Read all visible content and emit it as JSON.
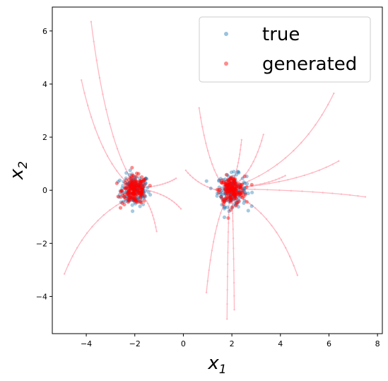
{
  "chart_data": {
    "type": "scatter",
    "title": "",
    "xlabel": "x",
    "xlabel_sub": "1",
    "ylabel": "x",
    "ylabel_sub": "2",
    "xlim": [
      -5.4,
      8.2
    ],
    "ylim": [
      -5.4,
      6.9
    ],
    "x_ticks": [
      -4,
      -2,
      0,
      2,
      4,
      6,
      8
    ],
    "y_ticks": [
      -4,
      -2,
      0,
      2,
      4,
      6
    ],
    "x_tick_labels": [
      "−4",
      "−2",
      "0",
      "2",
      "4",
      "6",
      "8"
    ],
    "y_tick_labels": [
      "−4",
      "−2",
      "0",
      "2",
      "4",
      "6"
    ],
    "grid": false,
    "legend_position": "top-right",
    "series": [
      {
        "name": "true",
        "color": "#1f77b4",
        "clusters": [
          {
            "center": [
              -2.0,
              0.0
            ],
            "spread": 0.3,
            "count": 160
          },
          {
            "center": [
              2.0,
              0.0
            ],
            "spread": 0.3,
            "count": 160
          }
        ]
      },
      {
        "name": "generated",
        "color": "#ff0000",
        "clusters": [
          {
            "center": [
              -2.0,
              0.0
            ],
            "spread": 0.26,
            "count": 180
          },
          {
            "center": [
              2.0,
              0.0
            ],
            "spread": 0.26,
            "count": 180
          }
        ]
      }
    ],
    "trajectory_color": "#ffb6c1",
    "trajectories": [
      {
        "start": [
          -3.8,
          6.35
        ],
        "end": [
          -2.0,
          0.2
        ]
      },
      {
        "start": [
          -4.2,
          4.15
        ],
        "end": [
          -2.1,
          0.1
        ]
      },
      {
        "start": [
          -4.9,
          -3.15
        ],
        "end": [
          -2.2,
          -0.3
        ]
      },
      {
        "start": [
          -1.1,
          -1.55
        ],
        "end": [
          -1.7,
          -0.2
        ]
      },
      {
        "start": [
          -0.1,
          -0.7
        ],
        "end": [
          -1.5,
          0.0
        ]
      },
      {
        "start": [
          -0.3,
          0.45
        ],
        "end": [
          -1.6,
          0.1
        ]
      },
      {
        "start": [
          0.65,
          3.1
        ],
        "end": [
          1.7,
          0.1
        ]
      },
      {
        "start": [
          0.1,
          0.75
        ],
        "end": [
          1.6,
          -0.05
        ]
      },
      {
        "start": [
          0.95,
          -3.85
        ],
        "end": [
          1.8,
          -0.3
        ]
      },
      {
        "start": [
          1.8,
          -4.85
        ],
        "end": [
          1.9,
          -0.2
        ]
      },
      {
        "start": [
          2.1,
          -4.5
        ],
        "end": [
          2.0,
          -0.2
        ]
      },
      {
        "start": [
          4.7,
          -3.2
        ],
        "end": [
          2.2,
          -0.2
        ]
      },
      {
        "start": [
          7.5,
          -0.25
        ],
        "end": [
          2.4,
          0.05
        ]
      },
      {
        "start": [
          6.4,
          1.1
        ],
        "end": [
          2.3,
          0.1
        ]
      },
      {
        "start": [
          6.2,
          3.65
        ],
        "end": [
          2.3,
          0.2
        ]
      },
      {
        "start": [
          4.2,
          0.55
        ],
        "end": [
          2.2,
          0.1
        ]
      },
      {
        "start": [
          3.3,
          2.1
        ],
        "end": [
          2.1,
          0.2
        ]
      },
      {
        "start": [
          2.4,
          1.9
        ],
        "end": [
          2.0,
          0.3
        ]
      }
    ]
  }
}
